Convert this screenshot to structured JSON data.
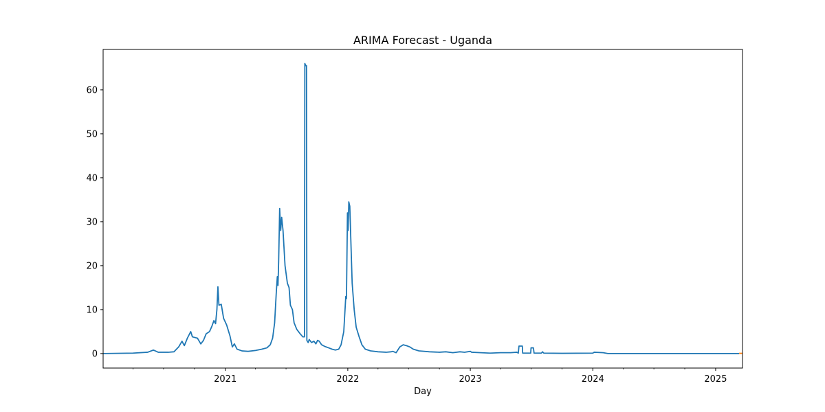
{
  "chart_data": {
    "type": "line",
    "title": "ARIMA Forecast - Uganda",
    "xlabel": "Day",
    "ylabel": "",
    "xlim": [
      "2020-01-03",
      "2025-03-22"
    ],
    "ylim": [
      -3.3,
      69.2
    ],
    "x_ticks": [
      {
        "date": "2021-01-01",
        "label": "2021"
      },
      {
        "date": "2022-01-01",
        "label": "2022"
      },
      {
        "date": "2023-01-01",
        "label": "2023"
      },
      {
        "date": "2024-01-01",
        "label": "2024"
      },
      {
        "date": "2025-01-01",
        "label": "2025"
      }
    ],
    "y_ticks": [
      0,
      10,
      20,
      30,
      40,
      50,
      60
    ],
    "grid": false,
    "series": [
      {
        "color": "#1f77b4",
        "points": [
          [
            "2020-01-03",
            0
          ],
          [
            "2020-04-01",
            0.1
          ],
          [
            "2020-05-15",
            0.3
          ],
          [
            "2020-06-01",
            0.8
          ],
          [
            "2020-06-15",
            0.3
          ],
          [
            "2020-07-15",
            0.3
          ],
          [
            "2020-08-01",
            0.4
          ],
          [
            "2020-08-15",
            1.5
          ],
          [
            "2020-08-25",
            2.8
          ],
          [
            "2020-09-01",
            1.8
          ],
          [
            "2020-09-10",
            3.5
          ],
          [
            "2020-09-20",
            5.0
          ],
          [
            "2020-09-25",
            3.8
          ],
          [
            "2020-10-10",
            3.5
          ],
          [
            "2020-10-20",
            2.2
          ],
          [
            "2020-10-28",
            3.0
          ],
          [
            "2020-11-05",
            4.5
          ],
          [
            "2020-11-15",
            5.0
          ],
          [
            "2020-11-22",
            6.2
          ],
          [
            "2020-11-28",
            7.5
          ],
          [
            "2020-12-03",
            6.8
          ],
          [
            "2020-12-07",
            10.0
          ],
          [
            "2020-12-10",
            15.2
          ],
          [
            "2020-12-13",
            11.0
          ],
          [
            "2020-12-20",
            11.2
          ],
          [
            "2020-12-27",
            8.0
          ],
          [
            "2021-01-05",
            6.5
          ],
          [
            "2021-01-15",
            4.0
          ],
          [
            "2021-01-22",
            1.5
          ],
          [
            "2021-01-28",
            2.2
          ],
          [
            "2021-02-05",
            1.0
          ],
          [
            "2021-02-20",
            0.6
          ],
          [
            "2021-03-10",
            0.5
          ],
          [
            "2021-04-01",
            0.7
          ],
          [
            "2021-04-20",
            1.0
          ],
          [
            "2021-05-05",
            1.3
          ],
          [
            "2021-05-15",
            2.0
          ],
          [
            "2021-05-22",
            3.5
          ],
          [
            "2021-05-28",
            7.0
          ],
          [
            "2021-06-02",
            14.0
          ],
          [
            "2021-06-05",
            17.5
          ],
          [
            "2021-06-07",
            15.5
          ],
          [
            "2021-06-09",
            21.0
          ],
          [
            "2021-06-12",
            33.0
          ],
          [
            "2021-06-15",
            28.0
          ],
          [
            "2021-06-18",
            31.0
          ],
          [
            "2021-06-22",
            28.0
          ],
          [
            "2021-06-28",
            20.0
          ],
          [
            "2021-07-05",
            16.0
          ],
          [
            "2021-07-10",
            15.0
          ],
          [
            "2021-07-14",
            11.0
          ],
          [
            "2021-07-20",
            10.0
          ],
          [
            "2021-07-25",
            7.0
          ],
          [
            "2021-08-02",
            5.5
          ],
          [
            "2021-08-12",
            4.5
          ],
          [
            "2021-08-20",
            3.8
          ],
          [
            "2021-08-25",
            3.8
          ],
          [
            "2021-08-26",
            66.0
          ],
          [
            "2021-08-29",
            65.5
          ],
          [
            "2021-08-31",
            65.5
          ],
          [
            "2021-09-01",
            3.0
          ],
          [
            "2021-09-05",
            2.5
          ],
          [
            "2021-09-08",
            3.2
          ],
          [
            "2021-09-15",
            2.5
          ],
          [
            "2021-09-22",
            2.8
          ],
          [
            "2021-09-28",
            2.2
          ],
          [
            "2021-10-03",
            3.0
          ],
          [
            "2021-10-08",
            2.8
          ],
          [
            "2021-10-15",
            2.0
          ],
          [
            "2021-10-25",
            1.6
          ],
          [
            "2021-11-05",
            1.3
          ],
          [
            "2021-11-15",
            1.0
          ],
          [
            "2021-11-25",
            0.8
          ],
          [
            "2021-12-05",
            1.0
          ],
          [
            "2021-12-12",
            2.0
          ],
          [
            "2021-12-20",
            5.0
          ],
          [
            "2021-12-26",
            13.0
          ],
          [
            "2021-12-28",
            12.5
          ],
          [
            "2021-12-31",
            32.0
          ],
          [
            "2022-01-02",
            28.0
          ],
          [
            "2022-01-04",
            34.5
          ],
          [
            "2022-01-07",
            33.5
          ],
          [
            "2022-01-10",
            26.0
          ],
          [
            "2022-01-14",
            16.0
          ],
          [
            "2022-01-20",
            10.0
          ],
          [
            "2022-01-26",
            6.0
          ],
          [
            "2022-02-03",
            4.0
          ],
          [
            "2022-02-12",
            2.0
          ],
          [
            "2022-02-22",
            1.0
          ],
          [
            "2022-03-10",
            0.6
          ],
          [
            "2022-04-01",
            0.4
          ],
          [
            "2022-04-25",
            0.3
          ],
          [
            "2022-05-10",
            0.4
          ],
          [
            "2022-05-15",
            0.5
          ],
          [
            "2022-05-25",
            0.2
          ],
          [
            "2022-06-05",
            1.5
          ],
          [
            "2022-06-15",
            2.0
          ],
          [
            "2022-06-25",
            1.8
          ],
          [
            "2022-07-05",
            1.5
          ],
          [
            "2022-07-15",
            1.0
          ],
          [
            "2022-08-01",
            0.6
          ],
          [
            "2022-09-01",
            0.4
          ],
          [
            "2022-10-01",
            0.3
          ],
          [
            "2022-10-20",
            0.4
          ],
          [
            "2022-11-10",
            0.2
          ],
          [
            "2022-12-01",
            0.4
          ],
          [
            "2022-12-15",
            0.3
          ],
          [
            "2023-01-01",
            0.5
          ],
          [
            "2023-01-05",
            0.3
          ],
          [
            "2023-02-01",
            0.2
          ],
          [
            "2023-03-01",
            0.1
          ],
          [
            "2023-04-01",
            0.2
          ],
          [
            "2023-05-01",
            0.2
          ],
          [
            "2023-05-20",
            0.3
          ],
          [
            "2023-05-24",
            0.1
          ],
          [
            "2023-05-26",
            1.7
          ],
          [
            "2023-06-05",
            1.7
          ],
          [
            "2023-06-06",
            0.1
          ],
          [
            "2023-06-30",
            0.1
          ],
          [
            "2023-07-01",
            1.3
          ],
          [
            "2023-07-08",
            1.3
          ],
          [
            "2023-07-10",
            0.1
          ],
          [
            "2023-08-01",
            0.1
          ],
          [
            "2023-08-04",
            0.4
          ],
          [
            "2023-08-08",
            0.1
          ],
          [
            "2023-10-01",
            0.05
          ],
          [
            "2024-01-01",
            0.1
          ],
          [
            "2024-01-05",
            0.3
          ],
          [
            "2024-02-01",
            0.2
          ],
          [
            "2024-02-15",
            0.0
          ],
          [
            "2025-03-12",
            0.0
          ]
        ]
      },
      {
        "color": "#ff7f0e",
        "points": [
          [
            "2025-03-12",
            0.05
          ],
          [
            "2025-03-22",
            0.05
          ]
        ]
      }
    ]
  }
}
